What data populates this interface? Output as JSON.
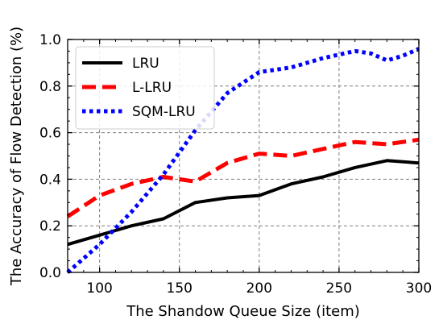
{
  "chart_data": {
    "type": "line",
    "title": "",
    "xlabel": "The Shandow Queue Size (item)",
    "ylabel": "The Accuracy of Flow Detection (%)",
    "xlim": [
      80,
      300
    ],
    "ylim": [
      0.0,
      1.0
    ],
    "x_ticks": [
      100,
      150,
      200,
      250,
      300
    ],
    "y_ticks": [
      0.0,
      0.2,
      0.4,
      0.6,
      0.8,
      1.0
    ],
    "x_tick_labels": [
      "100",
      "150",
      "200",
      "250",
      "300"
    ],
    "y_tick_labels": [
      "0.0",
      "0.2",
      "0.4",
      "0.6",
      "0.8",
      "1.0"
    ],
    "grid": true,
    "legend_position": "top-left",
    "series": [
      {
        "name": "LRU",
        "color": "#000000",
        "line_style": "solid",
        "x": [
          80,
          100,
          120,
          140,
          160,
          180,
          200,
          220,
          240,
          260,
          280,
          300
        ],
        "y": [
          0.12,
          0.16,
          0.2,
          0.23,
          0.3,
          0.32,
          0.33,
          0.38,
          0.41,
          0.45,
          0.48,
          0.47
        ]
      },
      {
        "name": "L-LRU",
        "color": "#ff0000",
        "line_style": "dashed",
        "x": [
          80,
          100,
          120,
          140,
          160,
          180,
          200,
          220,
          240,
          260,
          280,
          300
        ],
        "y": [
          0.24,
          0.33,
          0.38,
          0.41,
          0.39,
          0.47,
          0.51,
          0.5,
          0.53,
          0.56,
          0.55,
          0.57
        ]
      },
      {
        "name": "SQM-LRU",
        "color": "#0000ff",
        "line_style": "dotted",
        "x": [
          80,
          100,
          120,
          140,
          160,
          180,
          200,
          220,
          240,
          260,
          270,
          280,
          290,
          300
        ],
        "y": [
          0.0,
          0.12,
          0.26,
          0.42,
          0.61,
          0.77,
          0.86,
          0.88,
          0.92,
          0.95,
          0.94,
          0.91,
          0.93,
          0.96
        ]
      }
    ]
  }
}
